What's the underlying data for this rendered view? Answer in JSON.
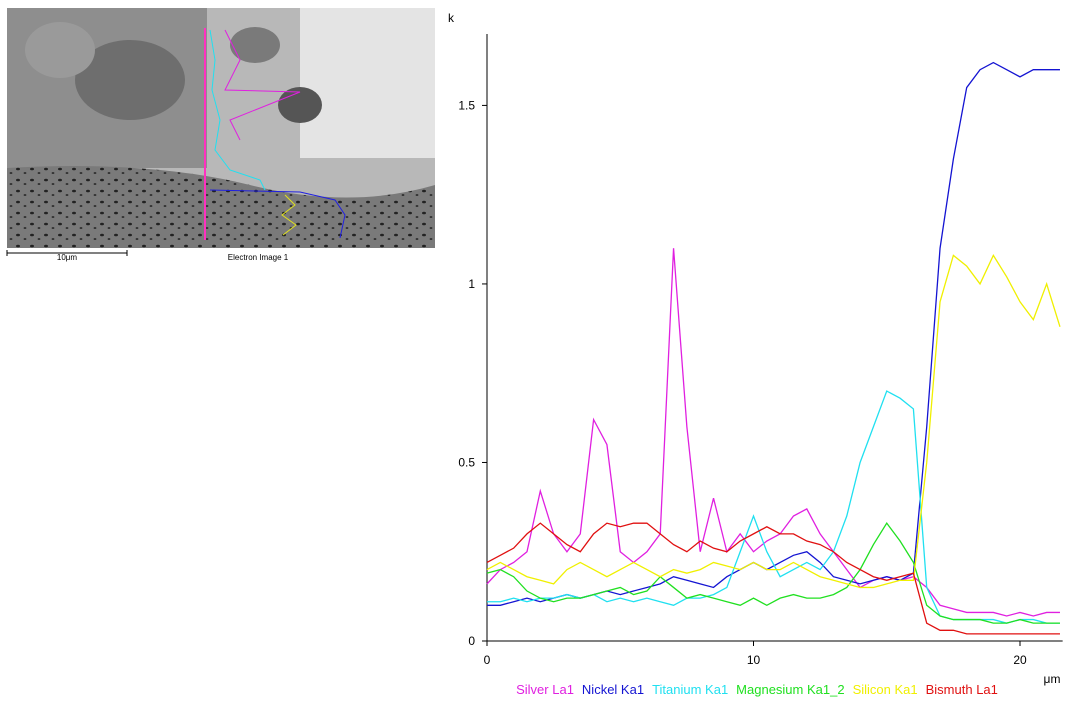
{
  "electron_image": {
    "scale_bar": "10μm",
    "caption": "Electron Image 1"
  },
  "chart_data": {
    "type": "line",
    "x_label": "μm",
    "y_label": "k",
    "x": [
      0,
      0.5,
      1,
      1.5,
      2,
      2.5,
      3,
      3.5,
      4,
      4.5,
      5,
      5.5,
      6,
      6.5,
      7,
      7.5,
      8,
      8.5,
      9,
      9.5,
      10,
      10.5,
      11,
      11.5,
      12,
      12.5,
      13,
      13.5,
      14,
      14.5,
      15,
      15.5,
      16,
      16.5,
      17,
      17.5,
      18,
      18.5,
      19,
      19.5,
      20,
      20.5,
      21,
      21.5
    ],
    "series": [
      {
        "name": "Silver La1",
        "color": "#e020e0",
        "values": [
          0.16,
          0.2,
          0.22,
          0.25,
          0.42,
          0.3,
          0.25,
          0.3,
          0.62,
          0.55,
          0.25,
          0.22,
          0.25,
          0.3,
          1.1,
          0.6,
          0.25,
          0.4,
          0.25,
          0.3,
          0.25,
          0.28,
          0.3,
          0.35,
          0.37,
          0.3,
          0.25,
          0.2,
          0.15,
          0.17,
          0.18,
          0.17,
          0.18,
          0.15,
          0.1,
          0.09,
          0.08,
          0.08,
          0.08,
          0.07,
          0.08,
          0.07,
          0.08,
          0.08
        ]
      },
      {
        "name": "Nickel Ka1",
        "color": "#1414d2",
        "values": [
          0.1,
          0.1,
          0.11,
          0.12,
          0.11,
          0.12,
          0.13,
          0.12,
          0.13,
          0.14,
          0.13,
          0.14,
          0.15,
          0.16,
          0.18,
          0.17,
          0.16,
          0.15,
          0.18,
          0.2,
          0.22,
          0.2,
          0.22,
          0.24,
          0.25,
          0.22,
          0.18,
          0.17,
          0.16,
          0.17,
          0.18,
          0.17,
          0.19,
          0.6,
          1.1,
          1.35,
          1.55,
          1.6,
          1.62,
          1.6,
          1.58,
          1.6,
          1.6,
          1.6
        ]
      },
      {
        "name": "Titanium Ka1",
        "color": "#20e0f0",
        "values": [
          0.11,
          0.11,
          0.12,
          0.11,
          0.12,
          0.12,
          0.13,
          0.12,
          0.13,
          0.11,
          0.12,
          0.11,
          0.12,
          0.11,
          0.1,
          0.12,
          0.12,
          0.13,
          0.15,
          0.25,
          0.35,
          0.25,
          0.18,
          0.2,
          0.22,
          0.2,
          0.25,
          0.35,
          0.5,
          0.6,
          0.7,
          0.68,
          0.65,
          0.15,
          0.07,
          0.06,
          0.06,
          0.06,
          0.06,
          0.05,
          0.06,
          0.06,
          0.05,
          0.05
        ]
      },
      {
        "name": "Magnesium Ka1_2",
        "color": "#20e020",
        "values": [
          0.19,
          0.2,
          0.18,
          0.14,
          0.12,
          0.11,
          0.12,
          0.12,
          0.13,
          0.14,
          0.15,
          0.13,
          0.14,
          0.18,
          0.15,
          0.12,
          0.13,
          0.12,
          0.11,
          0.1,
          0.12,
          0.1,
          0.12,
          0.13,
          0.12,
          0.12,
          0.13,
          0.15,
          0.2,
          0.27,
          0.33,
          0.28,
          0.22,
          0.1,
          0.07,
          0.06,
          0.06,
          0.06,
          0.05,
          0.05,
          0.06,
          0.05,
          0.05,
          0.05
        ]
      },
      {
        "name": "Silicon Ka1",
        "color": "#f0f000",
        "values": [
          0.2,
          0.22,
          0.2,
          0.18,
          0.17,
          0.16,
          0.2,
          0.22,
          0.2,
          0.18,
          0.2,
          0.22,
          0.2,
          0.18,
          0.2,
          0.19,
          0.2,
          0.22,
          0.21,
          0.2,
          0.22,
          0.2,
          0.2,
          0.22,
          0.2,
          0.18,
          0.17,
          0.16,
          0.15,
          0.15,
          0.16,
          0.17,
          0.17,
          0.5,
          0.95,
          1.08,
          1.05,
          1.0,
          1.08,
          1.02,
          0.95,
          0.9,
          1.0,
          0.88
        ]
      },
      {
        "name": "Bismuth La1",
        "color": "#e01010",
        "values": [
          0.22,
          0.24,
          0.26,
          0.3,
          0.33,
          0.3,
          0.27,
          0.25,
          0.3,
          0.33,
          0.32,
          0.33,
          0.33,
          0.3,
          0.27,
          0.25,
          0.28,
          0.26,
          0.25,
          0.28,
          0.3,
          0.32,
          0.3,
          0.3,
          0.28,
          0.27,
          0.25,
          0.22,
          0.2,
          0.18,
          0.17,
          0.18,
          0.19,
          0.05,
          0.03,
          0.03,
          0.02,
          0.02,
          0.02,
          0.02,
          0.02,
          0.02,
          0.02,
          0.02
        ]
      }
    ],
    "xlim": [
      0,
      21.6
    ],
    "ylim": [
      0,
      1.7
    ],
    "xticks": [
      0,
      10,
      20
    ],
    "yticks": [
      0,
      0.5,
      1,
      1.5
    ],
    "grid": false
  }
}
